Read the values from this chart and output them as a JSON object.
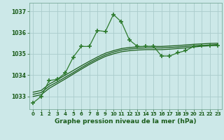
{
  "title": "Graphe pression niveau de la mer (hPa)",
  "background_color": "#cce8e8",
  "grid_color": "#aacccc",
  "line_color_dark": "#1a5c1a",
  "line_color_mid": "#2d7a2d",
  "xlim": [
    -0.5,
    23.5
  ],
  "ylim": [
    1032.4,
    1037.4
  ],
  "yticks": [
    1033,
    1034,
    1035,
    1036,
    1037
  ],
  "xticks": [
    0,
    1,
    2,
    3,
    4,
    5,
    6,
    7,
    8,
    9,
    10,
    11,
    12,
    13,
    14,
    15,
    16,
    17,
    18,
    19,
    20,
    21,
    22,
    23
  ],
  "series_main": [
    1032.7,
    1033.0,
    1033.75,
    1033.8,
    1034.1,
    1034.85,
    1035.35,
    1035.35,
    1036.1,
    1036.05,
    1036.85,
    1036.5,
    1035.65,
    1035.35,
    1035.35,
    1035.35,
    1034.9,
    1034.9,
    1035.05,
    1035.15,
    1035.35,
    1035.4,
    1035.4,
    1035.4
  ],
  "series_smooth1": [
    1033.0,
    1033.08,
    1033.38,
    1033.6,
    1033.82,
    1034.05,
    1034.28,
    1034.5,
    1034.7,
    1034.88,
    1035.0,
    1035.1,
    1035.15,
    1035.18,
    1035.2,
    1035.2,
    1035.2,
    1035.22,
    1035.25,
    1035.28,
    1035.32,
    1035.36,
    1035.38,
    1035.4
  ],
  "series_smooth2": [
    1033.1,
    1033.18,
    1033.48,
    1033.68,
    1033.9,
    1034.12,
    1034.35,
    1034.57,
    1034.77,
    1034.95,
    1035.08,
    1035.18,
    1035.23,
    1035.26,
    1035.28,
    1035.28,
    1035.28,
    1035.3,
    1035.32,
    1035.35,
    1035.38,
    1035.4,
    1035.42,
    1035.44
  ],
  "series_smooth3": [
    1033.2,
    1033.28,
    1033.58,
    1033.78,
    1034.0,
    1034.22,
    1034.44,
    1034.65,
    1034.85,
    1035.03,
    1035.15,
    1035.25,
    1035.3,
    1035.33,
    1035.35,
    1035.35,
    1035.35,
    1035.37,
    1035.39,
    1035.42,
    1035.45,
    1035.47,
    1035.49,
    1035.5
  ]
}
